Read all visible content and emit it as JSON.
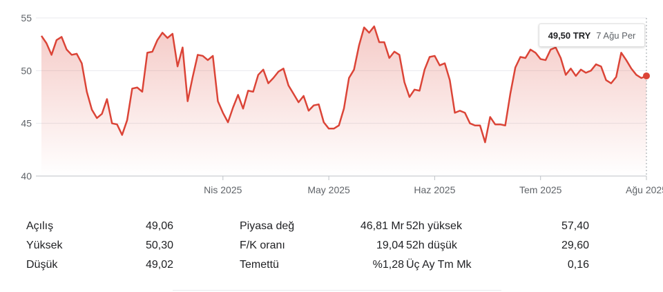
{
  "chart_data": {
    "type": "area",
    "currency": "TRY",
    "ylim": [
      40,
      55
    ],
    "yticks": [
      40,
      45,
      50,
      55
    ],
    "xticks": [
      {
        "label": "Nis 2025",
        "index": 36
      },
      {
        "label": "May 2025",
        "index": 57
      },
      {
        "label": "Haz 2025",
        "index": 78
      },
      {
        "label": "Tem 2025",
        "index": 99
      },
      {
        "label": "Ağu 2025",
        "index": 120
      }
    ],
    "values": [
      53.3,
      52.6,
      51.5,
      52.9,
      53.2,
      52.0,
      51.5,
      51.6,
      50.7,
      48.0,
      46.3,
      45.5,
      45.9,
      47.3,
      45.0,
      44.9,
      43.9,
      45.3,
      48.3,
      48.4,
      48.0,
      51.7,
      51.8,
      52.9,
      53.6,
      53.1,
      53.5,
      50.4,
      52.2,
      47.1,
      49.4,
      51.5,
      51.4,
      51.0,
      51.4,
      47.1,
      46.0,
      45.1,
      46.5,
      47.7,
      46.4,
      48.1,
      48.0,
      49.6,
      50.1,
      48.8,
      49.3,
      49.9,
      50.2,
      48.6,
      47.8,
      47.0,
      47.6,
      46.2,
      46.7,
      46.8,
      45.1,
      44.5,
      44.5,
      44.8,
      46.4,
      49.3,
      50.1,
      52.4,
      54.1,
      53.6,
      54.2,
      52.7,
      52.7,
      51.2,
      51.8,
      51.5,
      48.9,
      47.5,
      48.2,
      48.1,
      50.1,
      51.3,
      51.4,
      50.5,
      50.7,
      49.1,
      46.0,
      46.2,
      46.0,
      45.0,
      44.8,
      44.8,
      43.2,
      45.6,
      44.9,
      44.9,
      44.8,
      47.8,
      50.3,
      51.3,
      51.2,
      52.0,
      51.7,
      51.1,
      51.0,
      52.0,
      52.2,
      51.2,
      49.6,
      50.2,
      49.5,
      50.1,
      49.8,
      50.0,
      50.6,
      50.4,
      49.1,
      48.8,
      49.4,
      51.7,
      51.0,
      50.2,
      49.6,
      49.3,
      49.5
    ]
  },
  "tooltip": {
    "price": "49,50 TRY",
    "date": "7 Ağu Per"
  },
  "stats": [
    [
      {
        "label": "Açılış",
        "value": "49,06"
      },
      {
        "label": "Yüksek",
        "value": "50,30"
      },
      {
        "label": "Düşük",
        "value": "49,02"
      }
    ],
    [
      {
        "label": "Piyasa değ",
        "value": "46,81 Mr"
      },
      {
        "label": "F/K oranı",
        "value": "19,04"
      },
      {
        "label": "Temettü",
        "value": "%1,28"
      }
    ],
    [
      {
        "label": "52h yüksek",
        "value": "57,40"
      },
      {
        "label": "52h düşük",
        "value": "29,60"
      },
      {
        "label": "Üç Ay Tm Mk",
        "value": "0,16"
      }
    ]
  ],
  "colors": {
    "line": "#db4437",
    "grid": "#e8eaed",
    "axis_text": "#5f6368"
  }
}
